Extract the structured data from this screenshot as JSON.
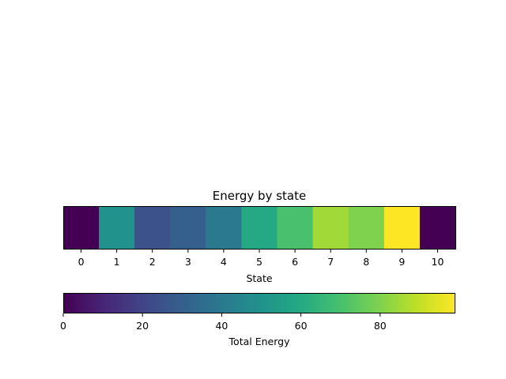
{
  "chart_data": {
    "type": "heatmap",
    "title": "Energy by state",
    "xlabel": "State",
    "ylabel": "",
    "categories": [
      "0",
      "1",
      "2",
      "3",
      "4",
      "5",
      "6",
      "7",
      "8",
      "9",
      "10"
    ],
    "values": [
      0,
      50,
      25,
      30,
      40,
      60,
      70,
      85,
      80,
      99,
      0
    ],
    "colormap": "viridis",
    "colorbar": {
      "label": "Total Energy",
      "range": [
        0,
        99
      ],
      "ticks": [
        0,
        20,
        40,
        60,
        80
      ],
      "tick_labels": [
        "0",
        "20",
        "40",
        "60",
        "80"
      ],
      "orientation": "horizontal",
      "placement": "below"
    }
  }
}
